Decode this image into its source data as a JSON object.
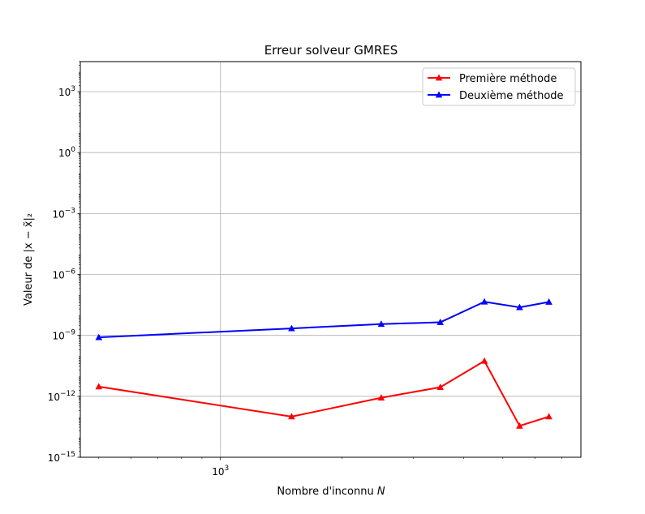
{
  "chart_data": {
    "type": "line",
    "title": "Erreur solveur GMRES",
    "xlabel": "Nombre d'inconnu ",
    "xlabel_var": "N",
    "ylabel": "Valeur de |x − x̃|₂",
    "xscale": "log",
    "yscale": "log",
    "xlim": [
      450,
      7800
    ],
    "ylim": [
      1e-15,
      30000.0
    ],
    "x": [
      500,
      1500,
      2500,
      3500,
      4500,
      5500,
      6500
    ],
    "x_ticks": [
      {
        "value": 1000,
        "mantissa": "10",
        "exp": "3"
      }
    ],
    "y_ticks": [
      {
        "value": 1000.0,
        "mantissa": "10",
        "exp": "3"
      },
      {
        "value": 1,
        "mantissa": "10",
        "exp": "0"
      },
      {
        "value": 0.001,
        "mantissa": "10",
        "exp": "−3"
      },
      {
        "value": 1e-06,
        "mantissa": "10",
        "exp": "−6"
      },
      {
        "value": 1e-09,
        "mantissa": "10",
        "exp": "−9"
      },
      {
        "value": 1e-12,
        "mantissa": "10",
        "exp": "−12"
      },
      {
        "value": 1e-15,
        "mantissa": "10",
        "exp": "−15"
      }
    ],
    "series": [
      {
        "name": "Première méthode",
        "color": "#ff0000",
        "marker": "triangle",
        "values": [
          3e-12,
          1e-13,
          8.5e-13,
          2.8e-12,
          5.5e-11,
          3.5e-14,
          1e-13
        ]
      },
      {
        "name": "Deuxième méthode",
        "color": "#0000ff",
        "marker": "triangle",
        "values": [
          8e-10,
          2.2e-09,
          3.6e-09,
          4.4e-09,
          4.5e-08,
          2.4e-08,
          4.4e-08
        ]
      }
    ],
    "grid": true,
    "legend_position": "top-right"
  }
}
